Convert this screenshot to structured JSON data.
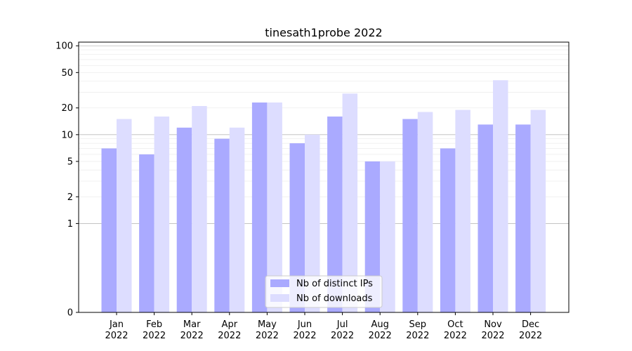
{
  "chart_data": {
    "type": "bar",
    "title": "tinesath1probe 2022",
    "xlabel": "",
    "ylabel": "",
    "y_scale": "symlog",
    "ylim": [
      0,
      110
    ],
    "y_ticks": [
      0,
      1,
      2,
      5,
      10,
      20,
      50,
      100
    ],
    "y_tick_labels": [
      "0",
      "1",
      "2",
      "5",
      "10",
      "20",
      "50",
      "100"
    ],
    "categories": [
      "Jan\n2022",
      "Feb\n2022",
      "Mar\n2022",
      "Apr\n2022",
      "May\n2022",
      "Jun\n2022",
      "Jul\n2022",
      "Aug\n2022",
      "Sep\n2022",
      "Oct\n2022",
      "Nov\n2022",
      "Dec\n2022"
    ],
    "series": [
      {
        "name": "Nb of distinct IPs",
        "color": "#aaaaff",
        "values": [
          7,
          6,
          12,
          9,
          23,
          8,
          16,
          5,
          15,
          7,
          13,
          13
        ]
      },
      {
        "name": "Nb of downloads",
        "color": "#ddddff",
        "values": [
          15,
          16,
          21,
          12,
          23,
          10,
          29,
          5,
          18,
          19,
          41,
          19
        ]
      }
    ],
    "legend_position": "bottom-center",
    "grid": true
  }
}
